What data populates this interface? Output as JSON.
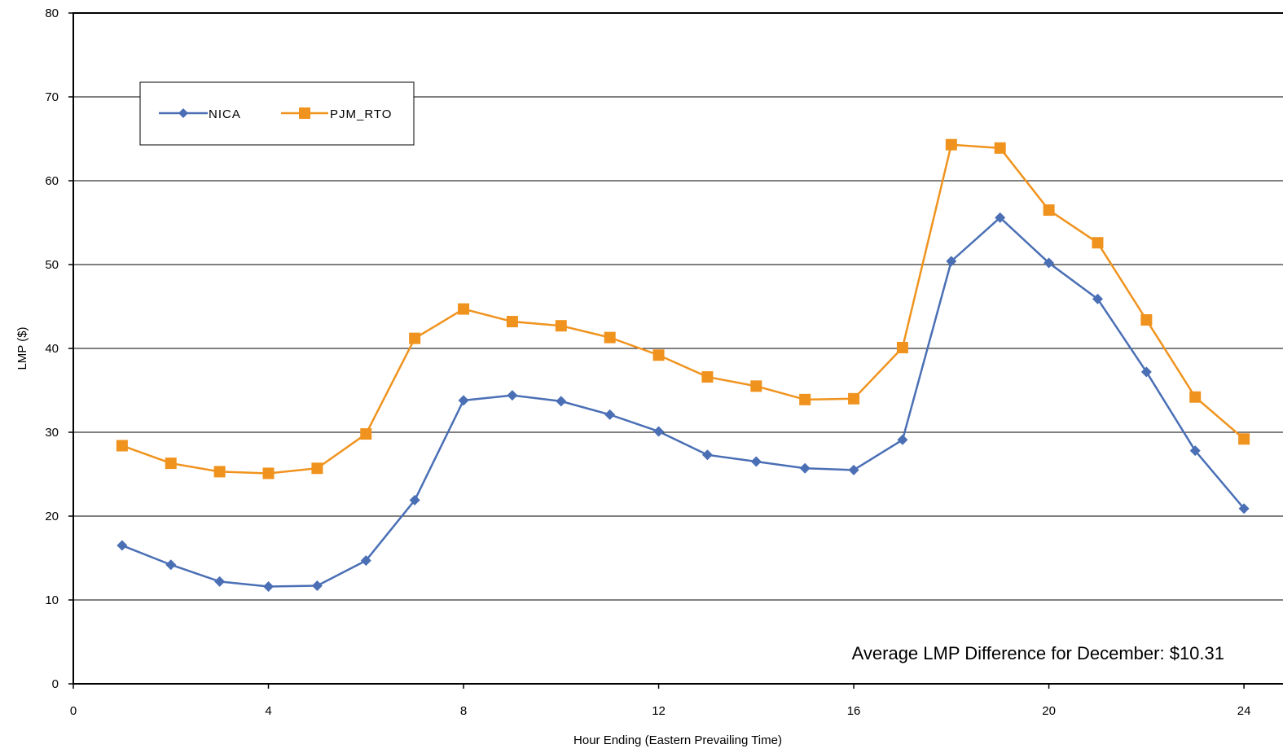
{
  "chart_data": {
    "type": "line",
    "title": "",
    "xlabel": "Hour Ending (Eastern Prevailing Time)",
    "ylabel": "LMP ($)",
    "xlim": [
      0,
      24.8
    ],
    "ylim": [
      0,
      80
    ],
    "xticks": [
      0,
      4,
      8,
      12,
      16,
      20,
      24
    ],
    "yticks": [
      0,
      10,
      20,
      30,
      40,
      50,
      60,
      70,
      80
    ],
    "grid": "horizontal",
    "legend_position": "top-left",
    "x": [
      1,
      2,
      3,
      4,
      5,
      6,
      7,
      8,
      9,
      10,
      11,
      12,
      13,
      14,
      15,
      16,
      17,
      18,
      19,
      20,
      21,
      22,
      23,
      24
    ],
    "series": [
      {
        "name": "NICA",
        "color": "#4a6fb5",
        "marker": "diamond",
        "values": [
          16.5,
          14.2,
          12.2,
          11.6,
          11.7,
          14.7,
          21.9,
          33.8,
          34.4,
          33.7,
          32.1,
          30.1,
          27.3,
          26.5,
          25.7,
          25.5,
          29.1,
          50.4,
          55.6,
          50.2,
          45.9,
          37.2,
          27.8,
          20.9
        ]
      },
      {
        "name": "PJM_RTO",
        "color": "#f0931e",
        "marker": "square",
        "values": [
          28.4,
          26.3,
          25.3,
          25.1,
          25.7,
          29.8,
          41.2,
          44.7,
          43.2,
          42.7,
          41.3,
          39.2,
          36.6,
          35.5,
          33.9,
          34.0,
          40.1,
          64.3,
          63.9,
          56.5,
          52.6,
          43.4,
          34.2,
          29.2
        ]
      }
    ],
    "annotation": "Average LMP Difference for December: $10.31"
  }
}
